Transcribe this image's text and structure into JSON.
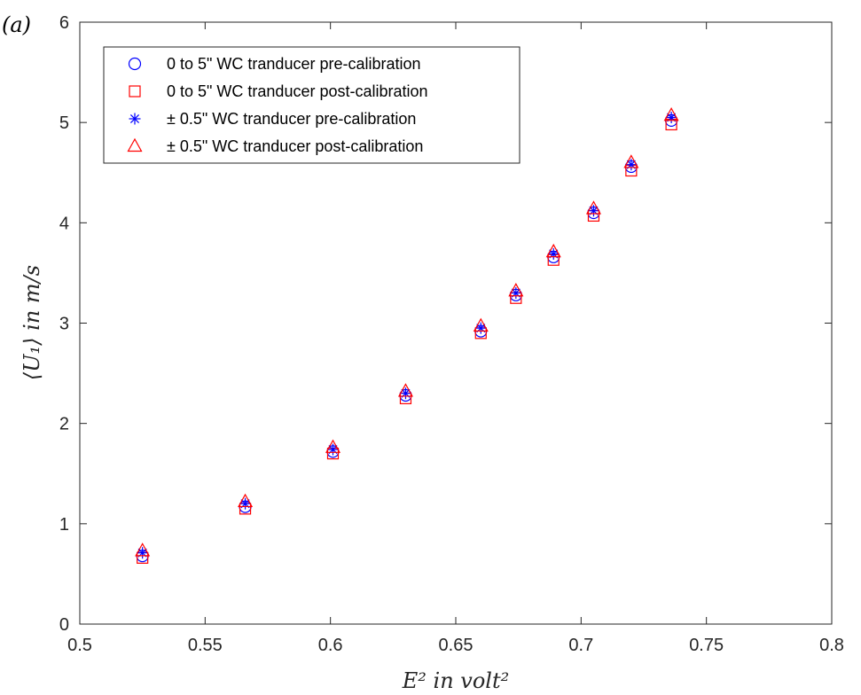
{
  "chart_data": {
    "type": "scatter",
    "panel_label": "(a)",
    "xlabel": "E² in volt²",
    "ylabel": "⟨U₁⟩ in m/s",
    "xlim": [
      0.5,
      0.8
    ],
    "ylim": [
      0,
      6
    ],
    "xticks": [
      "0.5",
      "0.55",
      "0.6",
      "0.65",
      "0.7",
      "0.75",
      "0.8"
    ],
    "yticks": [
      "0",
      "1",
      "2",
      "3",
      "4",
      "5",
      "6"
    ],
    "grid": false,
    "legend_position": "top-left",
    "x": [
      0.525,
      0.566,
      0.601,
      0.63,
      0.66,
      0.674,
      0.689,
      0.705,
      0.72,
      0.736
    ],
    "series": [
      {
        "name": "0 to 5\" WC tranducer pre-calibration",
        "marker": "circle",
        "color": "#0000ff",
        "values": [
          0.68,
          1.17,
          1.72,
          2.28,
          2.92,
          3.28,
          3.66,
          4.1,
          4.56,
          5.02
        ]
      },
      {
        "name": "0 to 5\" WC tranducer post-calibration",
        "marker": "square",
        "color": "#ff0000",
        "values": [
          0.66,
          1.15,
          1.7,
          2.25,
          2.9,
          3.25,
          3.63,
          4.07,
          4.52,
          4.98
        ]
      },
      {
        "name": "± 0.5\" WC tranducer pre-calibration",
        "marker": "asterisk",
        "color": "#0000ff",
        "values": [
          0.71,
          1.2,
          1.74,
          2.3,
          2.95,
          3.3,
          3.69,
          4.12,
          4.58,
          5.05
        ]
      },
      {
        "name": "± 0.5\" WC tranducer post-calibration",
        "marker": "triangle",
        "color": "#ff0000",
        "values": [
          0.73,
          1.22,
          1.76,
          2.32,
          2.97,
          3.32,
          3.71,
          4.14,
          4.6,
          5.07
        ]
      }
    ]
  }
}
